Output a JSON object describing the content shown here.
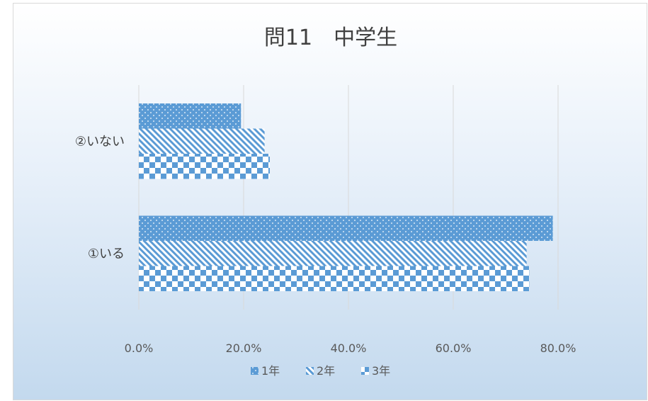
{
  "chart_data": {
    "type": "bar",
    "orientation": "horizontal",
    "title": "問11　中学生",
    "categories": [
      "①いる",
      "②いない"
    ],
    "series": [
      {
        "name": "1年",
        "values": [
          79.0,
          19.5
        ],
        "pattern": "dots",
        "color": "#5b9bd5"
      },
      {
        "name": "2年",
        "values": [
          74.0,
          24.0
        ],
        "pattern": "diagonal-stripes",
        "color": "#5b9bd5"
      },
      {
        "name": "3年",
        "values": [
          74.5,
          25.0
        ],
        "pattern": "checker",
        "color": "#5b9bd5"
      }
    ],
    "xlim": [
      0,
      80
    ],
    "xticks": [
      "0.0%",
      "20.0%",
      "40.0%",
      "60.0%",
      "80.0%"
    ],
    "grid": true,
    "legend_position": "bottom"
  }
}
